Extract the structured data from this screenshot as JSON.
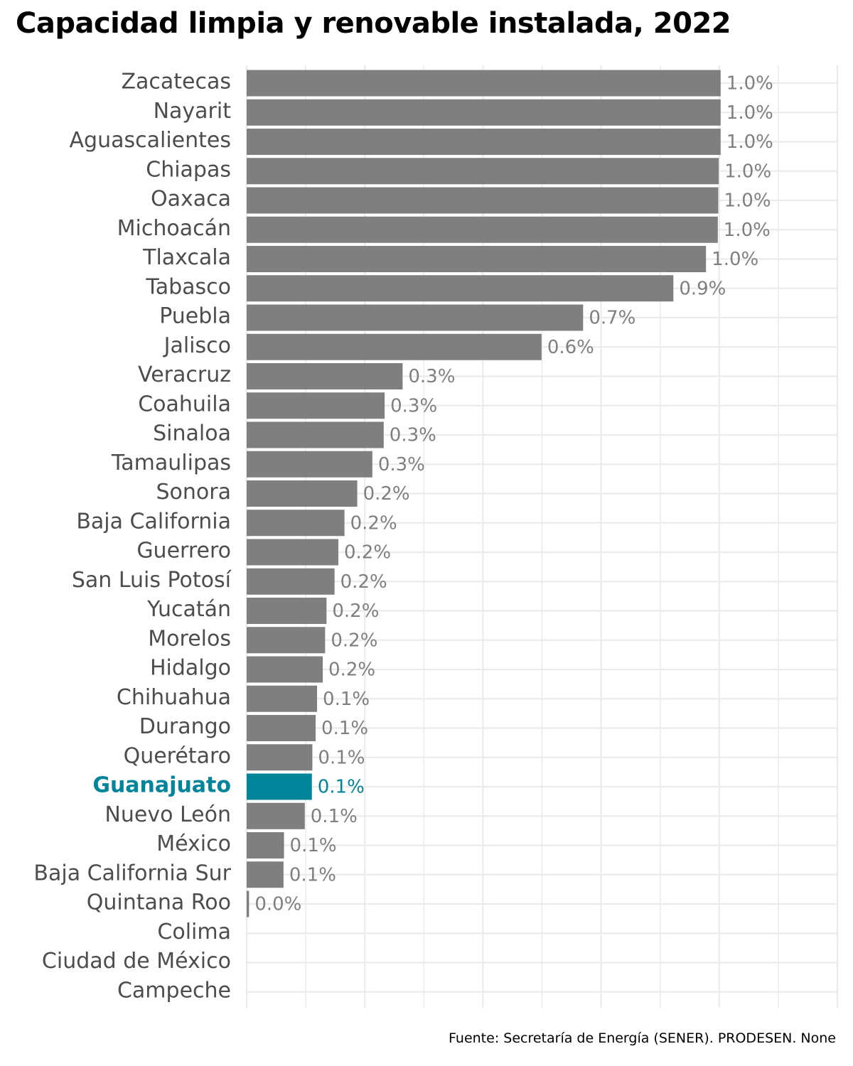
{
  "chart_data": {
    "type": "bar",
    "orientation": "horizontal",
    "title": "Capacidad limpia y renovable instalada, 2022",
    "caption": "Fuente: Secretaría de Energía (SENER). PRODESEN. None",
    "categories": [
      "Zacatecas",
      "Nayarit",
      "Aguascalientes",
      "Chiapas",
      "Oaxaca",
      "Michoacán",
      "Tlaxcala",
      "Tabasco",
      "Puebla",
      "Jalisco",
      "Veracruz",
      "Coahuila",
      "Sinaloa",
      "Tamaulipas",
      "Sonora",
      "Baja California",
      "Guerrero",
      "San Luis Potosí",
      "Yucatán",
      "Morelos",
      "Hidalgo",
      "Chihuahua",
      "Durango",
      "Querétaro",
      "Guanajuato",
      "Nuevo León",
      "México",
      "Baja California Sur",
      "Quintana Roo",
      "Colima",
      "Ciudad de México",
      "Campeche"
    ],
    "values": [
      1.003,
      1.003,
      1.003,
      0.999,
      0.998,
      0.997,
      0.972,
      0.903,
      0.712,
      0.624,
      0.33,
      0.292,
      0.29,
      0.266,
      0.234,
      0.207,
      0.194,
      0.186,
      0.169,
      0.166,
      0.161,
      0.149,
      0.146,
      0.139,
      0.138,
      0.123,
      0.079,
      0.078,
      0.005,
      0,
      0,
      0
    ],
    "labels": [
      "1.0%",
      "1.0%",
      "1.0%",
      "1.0%",
      "1.0%",
      "1.0%",
      "1.0%",
      "0.9%",
      "0.7%",
      "0.6%",
      "0.3%",
      "0.3%",
      "0.3%",
      "0.3%",
      "0.2%",
      "0.2%",
      "0.2%",
      "0.2%",
      "0.2%",
      "0.2%",
      "0.2%",
      "0.1%",
      "0.1%",
      "0.1%",
      "0.1%",
      "0.1%",
      "0.1%",
      "0.1%",
      "0.0%",
      "",
      "",
      ""
    ],
    "highlight": "Guanajuato",
    "xlim": [
      0,
      1.25
    ],
    "xticks_shown": false,
    "grid": true,
    "colors": {
      "bar": "#7f7f7f",
      "highlight": "#00859b",
      "label": "#7f7f7f",
      "category_text": "#4d4d4d",
      "grid": "#ebebeb"
    }
  }
}
